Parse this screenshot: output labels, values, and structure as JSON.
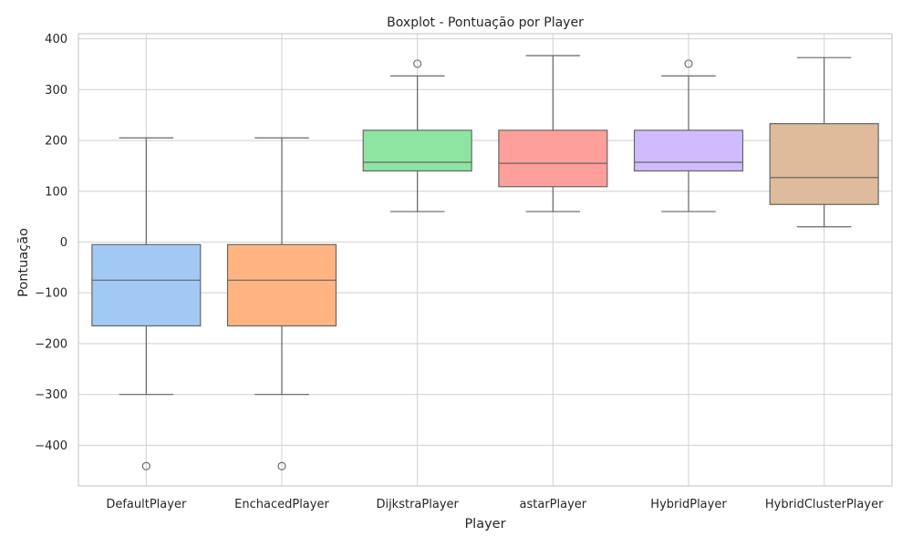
{
  "chart_data": {
    "type": "boxplot",
    "title": "Boxplot - Pontuação por Player",
    "xlabel": "Player",
    "ylabel": "Pontuação",
    "ylim": [
      -480,
      410
    ],
    "yticks": [
      -400,
      -300,
      -200,
      -100,
      0,
      100,
      200,
      300,
      400
    ],
    "ytick_labels": [
      "−400",
      "−300",
      "−200",
      "−100",
      "0",
      "100",
      "200",
      "300",
      "400"
    ],
    "grid": true,
    "categories": [
      "DefaultPlayer",
      "EnchacedPlayer",
      "DijkstraPlayer",
      "astarPlayer",
      "HybridPlayer",
      "HybridClusterPlayer"
    ],
    "boxes": [
      {
        "category": "DefaultPlayer",
        "whislo": -300,
        "q1": -165,
        "med": -75,
        "q3": -5,
        "whishi": 205,
        "fliers": [
          -441
        ],
        "color": "#a1c9f4"
      },
      {
        "category": "EnchacedPlayer",
        "whislo": -300,
        "q1": -165,
        "med": -75,
        "q3": -5,
        "whishi": 205,
        "fliers": [
          -441
        ],
        "color": "#ffb482"
      },
      {
        "category": "DijkstraPlayer",
        "whislo": 60,
        "q1": 140,
        "med": 157,
        "q3": 220,
        "whishi": 327,
        "fliers": [
          351
        ],
        "color": "#8de5a1"
      },
      {
        "category": "astarPlayer",
        "whislo": 60,
        "q1": 109,
        "med": 155,
        "q3": 220,
        "whishi": 367,
        "fliers": [],
        "color": "#ff9f9b"
      },
      {
        "category": "HybridPlayer",
        "whislo": 60,
        "q1": 140,
        "med": 157,
        "q3": 220,
        "whishi": 327,
        "fliers": [
          351
        ],
        "color": "#d0bbff"
      },
      {
        "category": "HybridClusterPlayer",
        "whislo": 30,
        "q1": 74,
        "med": 127,
        "q3": 233,
        "whishi": 363,
        "fliers": [],
        "color": "#debb9b"
      }
    ]
  }
}
